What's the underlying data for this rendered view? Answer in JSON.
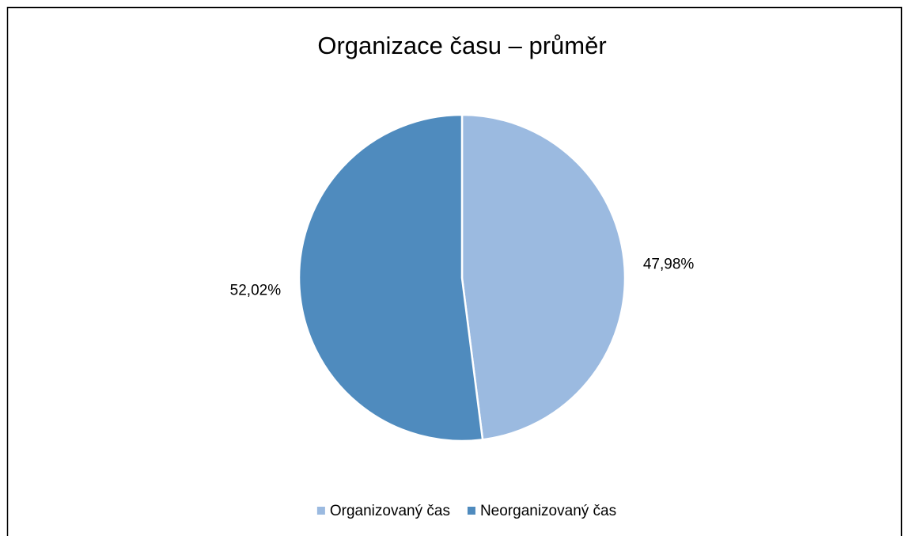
{
  "chart_data": {
    "type": "pie",
    "title": "Organizace času – průměr",
    "categories": [
      "Organizovaný čas",
      "Neorganizovaný čas"
    ],
    "values": [
      47.98,
      52.02
    ],
    "value_labels": [
      "47,98%",
      "52,02%"
    ],
    "colors": [
      "#9bbae0",
      "#4f8bbe"
    ],
    "legend": "bottom"
  }
}
